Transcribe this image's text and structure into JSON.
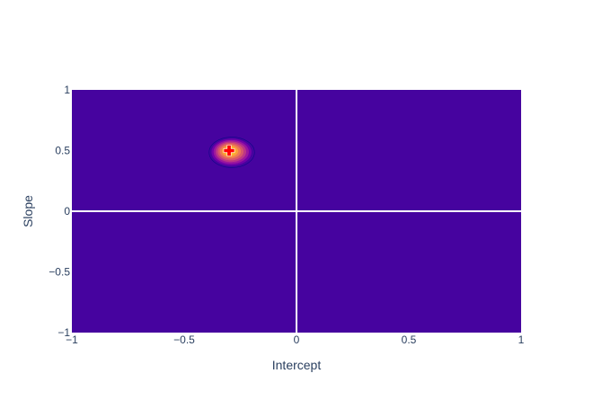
{
  "chart_data": {
    "type": "heatmap",
    "subtype": "contour",
    "title": "",
    "xlabel": "Intercept",
    "ylabel": "Slope",
    "xlim": [
      -1,
      1
    ],
    "ylim": [
      -1,
      1
    ],
    "x_ticks": [
      "−1",
      "−0.5",
      "0",
      "0.5",
      "1"
    ],
    "y_ticks": [
      "−1",
      "−0.5",
      "0",
      "0.5",
      "1"
    ],
    "x_tick_values": [
      -1,
      -0.5,
      0,
      0.5,
      1
    ],
    "y_tick_values": [
      -1,
      -0.5,
      0,
      0.5,
      1
    ],
    "grid": true,
    "zero_lines": true,
    "background_color": "#46039f",
    "colorscale": [
      "#0d0887",
      "#46039f",
      "#7201a8",
      "#9c179e",
      "#bd3786",
      "#d8576b",
      "#ed7953",
      "#fb9f3a",
      "#fdca26",
      "#f0f921"
    ],
    "peak": {
      "x": -0.3,
      "y": 0.5
    },
    "spread": {
      "x": 0.05,
      "y": 0.06
    },
    "contour_levels": 9,
    "marker": {
      "x": -0.3,
      "y": 0.5,
      "symbol": "cross",
      "color": "#ff0000"
    }
  }
}
